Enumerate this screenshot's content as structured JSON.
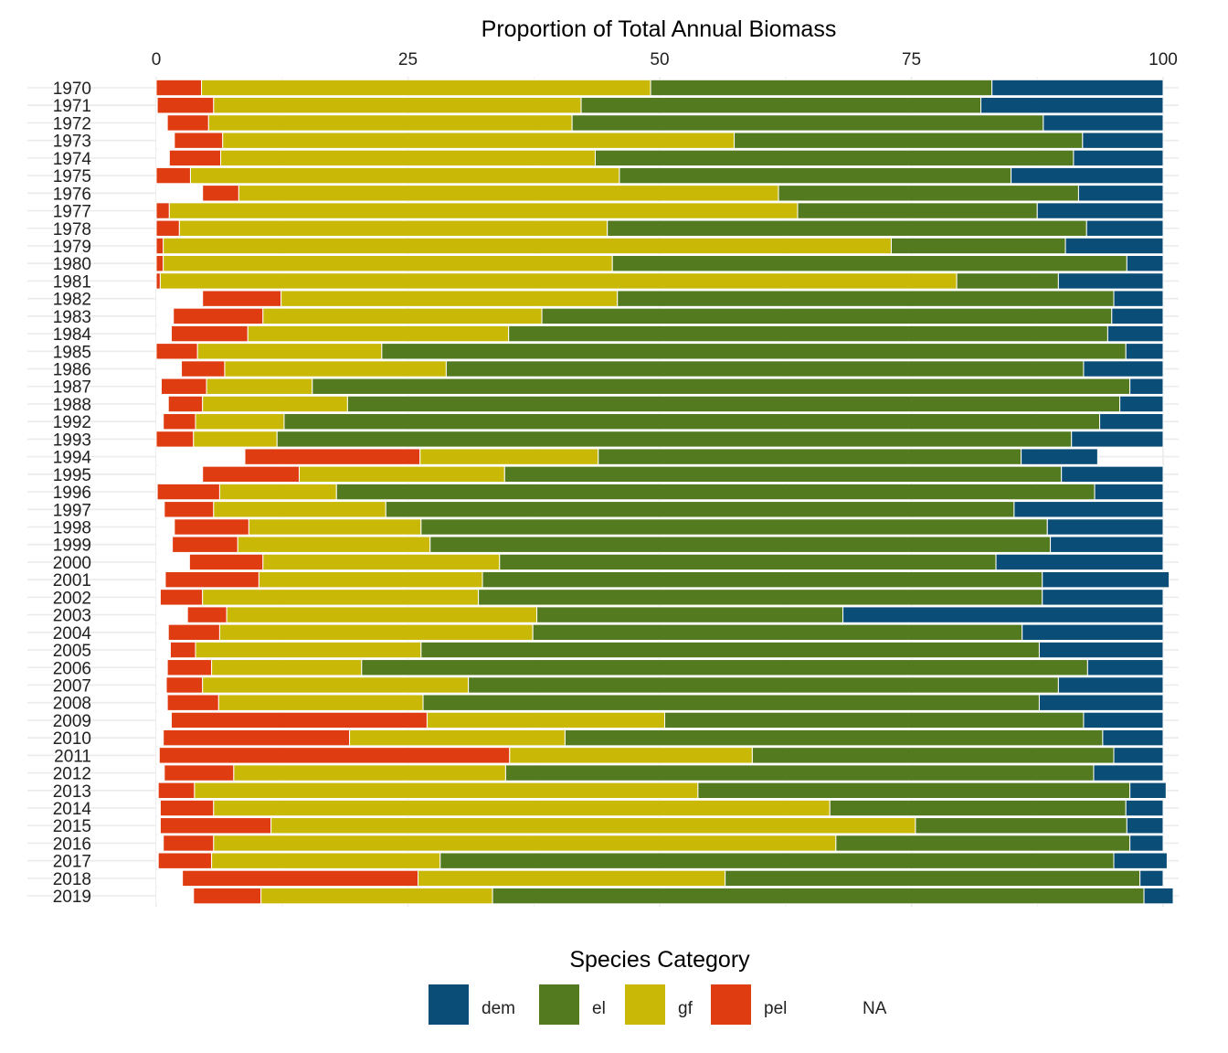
{
  "chart_data": {
    "type": "bar",
    "orientation": "horizontal",
    "stacked": true,
    "title": "Proportion of Total Annual Biomass",
    "x_axis_position": "top",
    "xlim": [
      0,
      100
    ],
    "xticks": [
      "0",
      "25",
      "50",
      "75",
      "100"
    ],
    "grid": true,
    "categories": [
      "1970",
      "1971",
      "1972",
      "1973",
      "1974",
      "1975",
      "1976",
      "1977",
      "1978",
      "1979",
      "1980",
      "1981",
      "1982",
      "1983",
      "1984",
      "1985",
      "1986",
      "1987",
      "1988",
      "1992",
      "1993",
      "1994",
      "1995",
      "1996",
      "1997",
      "1998",
      "1999",
      "2000",
      "2001",
      "2002",
      "2003",
      "2004",
      "2005",
      "2006",
      "2007",
      "2008",
      "2009",
      "2010",
      "2011",
      "2012",
      "2013",
      "2014",
      "2015",
      "2016",
      "2017",
      "2018",
      "2019"
    ],
    "series": [
      {
        "name": "NA",
        "color": "#ffffff",
        "values": [
          0,
          0.1,
          1.1,
          1.8,
          1.3,
          0,
          4.6,
          0,
          0,
          0,
          0,
          0,
          4.6,
          1.7,
          1.5,
          0,
          2.5,
          0.5,
          1.2,
          0.7,
          0,
          8.8,
          4.6,
          0.1,
          0.8,
          1.8,
          1.6,
          3.3,
          0.9,
          0.4,
          3.1,
          1.2,
          1.4,
          1.1,
          1.0,
          1.1,
          1.5,
          0.7,
          0.3,
          0.8,
          0.2,
          0.4,
          0.4,
          0.7,
          0.2,
          2.6,
          3.7
        ]
      },
      {
        "name": "pel",
        "color": "#e03c12",
        "values": [
          4.5,
          5.6,
          4.1,
          4.8,
          5.1,
          3.4,
          3.6,
          1.3,
          2.3,
          0.7,
          0.7,
          0.4,
          7.8,
          8.9,
          7.6,
          4.1,
          4.3,
          4.5,
          3.4,
          3.2,
          3.7,
          17.4,
          9.6,
          6.2,
          4.9,
          7.4,
          6.5,
          7.3,
          9.3,
          4.2,
          3.9,
          5.1,
          2.5,
          4.4,
          3.6,
          5.1,
          25.4,
          18.5,
          34.8,
          6.9,
          3.6,
          5.3,
          11.0,
          5.0,
          5.3,
          23.4,
          6.7
        ]
      },
      {
        "name": "gf",
        "color": "#c9b805",
        "values": [
          44.6,
          36.5,
          36.1,
          50.8,
          37.2,
          42.6,
          53.6,
          62.4,
          42.5,
          72.3,
          44.6,
          79.1,
          33.4,
          27.7,
          25.9,
          18.3,
          22.0,
          10.5,
          14.4,
          8.8,
          8.3,
          17.7,
          20.4,
          11.6,
          17.1,
          17.1,
          19.1,
          23.5,
          22.2,
          27.4,
          30.8,
          31.1,
          22.4,
          14.9,
          26.4,
          20.3,
          23.6,
          21.4,
          24.1,
          27.0,
          50.0,
          61.2,
          64.0,
          61.8,
          22.7,
          30.5,
          23.0
        ]
      },
      {
        "name": "el",
        "color": "#537a1e",
        "values": [
          33.9,
          39.7,
          46.8,
          34.6,
          47.5,
          38.9,
          29.8,
          23.8,
          47.6,
          17.3,
          51.1,
          10.1,
          49.3,
          56.6,
          59.5,
          73.9,
          63.3,
          81.2,
          76.7,
          81.0,
          78.9,
          42.0,
          55.3,
          75.3,
          62.4,
          62.2,
          61.6,
          49.3,
          55.6,
          56.0,
          30.4,
          48.6,
          61.4,
          72.1,
          58.6,
          61.2,
          41.6,
          53.4,
          35.9,
          58.4,
          42.9,
          29.4,
          21.0,
          29.2,
          66.9,
          41.2,
          64.7
        ]
      },
      {
        "name": "dem",
        "color": "#0a4d77",
        "values": [
          17.0,
          18.1,
          11.9,
          8.0,
          8.9,
          15.1,
          8.4,
          12.5,
          7.6,
          9.7,
          3.6,
          10.4,
          4.9,
          5.1,
          5.5,
          3.7,
          7.9,
          3.3,
          4.3,
          6.3,
          9.1,
          7.6,
          10.1,
          6.8,
          14.8,
          11.5,
          11.2,
          16.6,
          12.6,
          12.0,
          31.8,
          14.0,
          12.3,
          7.5,
          10.4,
          12.3,
          7.9,
          6.0,
          4.9,
          6.9,
          3.6,
          3.7,
          3.6,
          3.3,
          5.3,
          2.3,
          2.9
        ]
      }
    ]
  },
  "legend": {
    "title": "Species Category",
    "items": [
      {
        "label": "dem",
        "color": "#0a4d77"
      },
      {
        "label": "el",
        "color": "#537a1e"
      },
      {
        "label": "gf",
        "color": "#c9b805"
      },
      {
        "label": "pel",
        "color": "#e03c12"
      },
      {
        "label": "NA",
        "color": "#ffffff"
      }
    ]
  }
}
